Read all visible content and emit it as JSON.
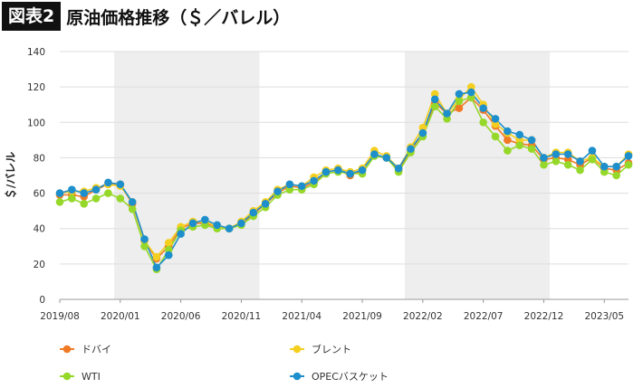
{
  "header": {
    "badge": "図表2",
    "title": "原油価格推移（＄／バレル）"
  },
  "chart_data": {
    "type": "line",
    "ylabel": "＄/バレル",
    "ylim": [
      0,
      140
    ],
    "yticks": [
      0,
      20,
      40,
      60,
      80,
      100,
      120,
      140
    ],
    "x_ticks": [
      {
        "index": 0,
        "label": "2019/08"
      },
      {
        "index": 5,
        "label": "2020/01"
      },
      {
        "index": 10,
        "label": "2020/06"
      },
      {
        "index": 15,
        "label": "2020/11"
      },
      {
        "index": 20,
        "label": "2021/04"
      },
      {
        "index": 25,
        "label": "2021/09"
      },
      {
        "index": 30,
        "label": "2022/02"
      },
      {
        "index": 35,
        "label": "2022/07"
      },
      {
        "index": 40,
        "label": "2022/12"
      },
      {
        "index": 45,
        "label": "2023/05"
      }
    ],
    "grid": "horizontal",
    "shaded_bands": "alternating years",
    "legend_position": "bottom",
    "series": [
      {
        "name": "ドバイ",
        "color": "#f07a24",
        "values": [
          59,
          59,
          58,
          62,
          65,
          65,
          54,
          33,
          23,
          30,
          40,
          43,
          43,
          41,
          40,
          43,
          48,
          54,
          60,
          64,
          63,
          66,
          72,
          73,
          70,
          73,
          82,
          80,
          73,
          84,
          94,
          111,
          105,
          108,
          114,
          107,
          98,
          90,
          88,
          87,
          79,
          80,
          79,
          76,
          80,
          74,
          73,
          77
        ]
      },
      {
        "name": "ブレント",
        "color": "#f5cf1f",
        "values": [
          60,
          61,
          61,
          63,
          65,
          64,
          55,
          33,
          24,
          32,
          41,
          44,
          44,
          41,
          40,
          44,
          50,
          55,
          62,
          65,
          64,
          69,
          73,
          74,
          72,
          74,
          84,
          81,
          74,
          86,
          97,
          116,
          105,
          113,
          120,
          110,
          99,
          94,
          90,
          90,
          80,
          83,
          83,
          78,
          80,
          75,
          75,
          82
        ]
      },
      {
        "name": "WTI",
        "color": "#96d82a",
        "values": [
          55,
          57,
          54,
          57,
          60,
          57,
          51,
          30,
          17,
          28,
          39,
          41,
          42,
          40,
          40,
          42,
          47,
          52,
          59,
          62,
          62,
          65,
          71,
          72,
          71,
          71,
          81,
          80,
          72,
          83,
          92,
          109,
          102,
          112,
          114,
          100,
          92,
          84,
          87,
          85,
          76,
          78,
          76,
          73,
          79,
          72,
          70,
          76
        ]
      },
      {
        "name": "OPECバスケット",
        "color": "#1d8fcc",
        "values": [
          60,
          62,
          60,
          62,
          66,
          65,
          55,
          34,
          18,
          25,
          37,
          43,
          45,
          42,
          40,
          43,
          49,
          54,
          61,
          65,
          64,
          67,
          72,
          73,
          71,
          73,
          82,
          80,
          74,
          85,
          94,
          113,
          105,
          116,
          117,
          108,
          102,
          95,
          93,
          90,
          80,
          82,
          82,
          78,
          84,
          75,
          75,
          81
        ]
      }
    ]
  }
}
